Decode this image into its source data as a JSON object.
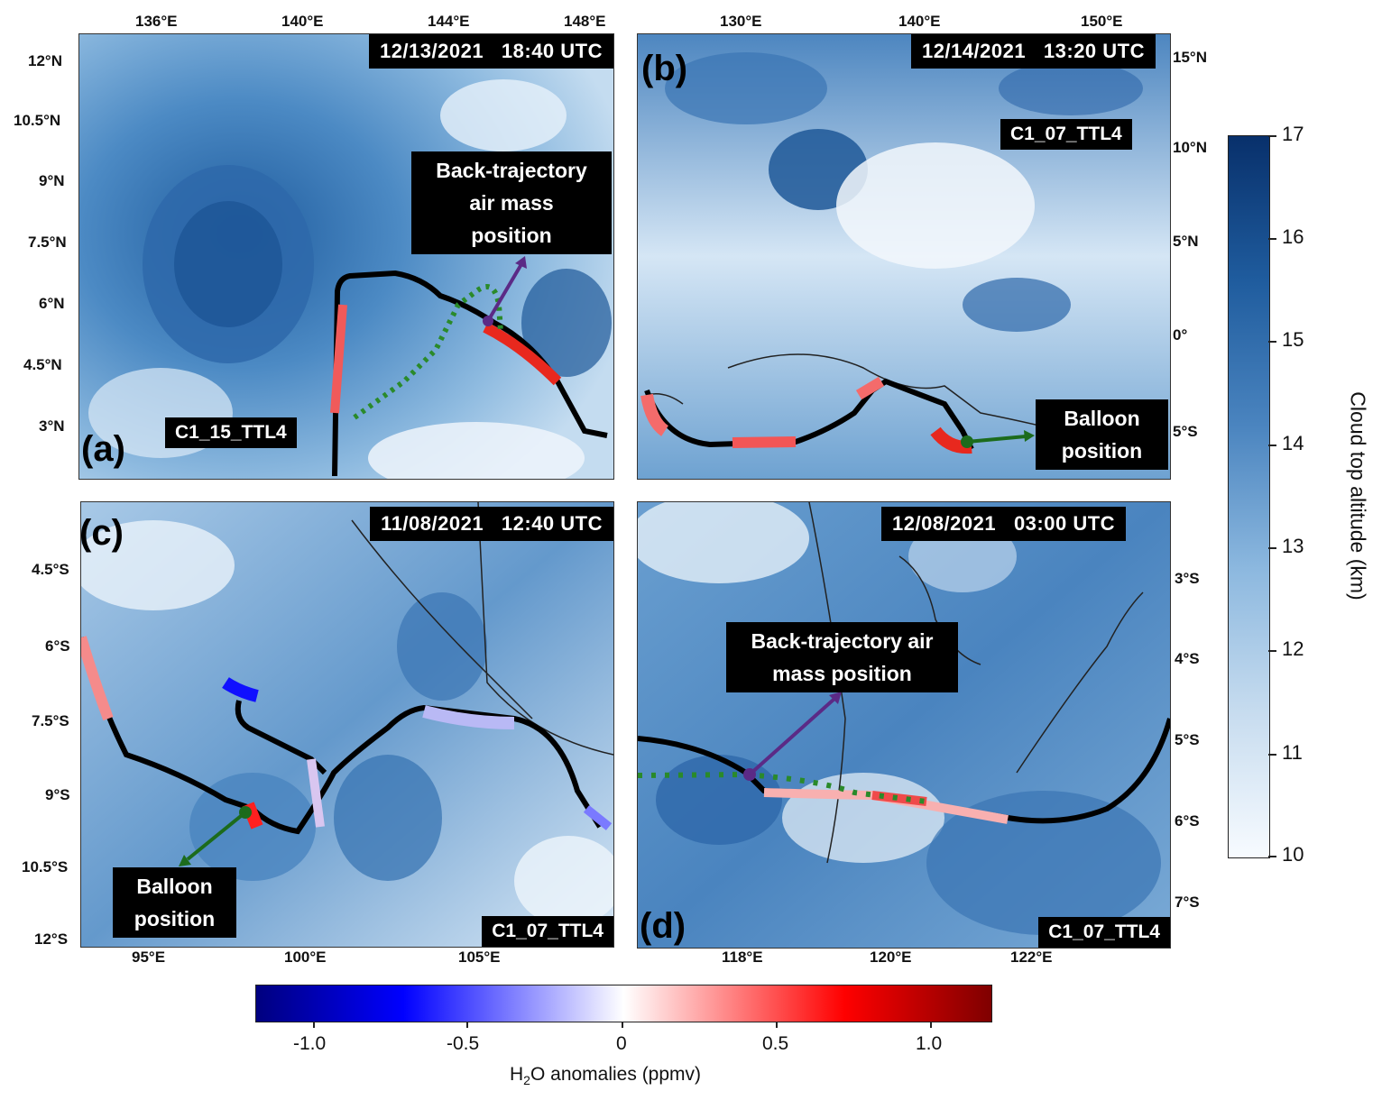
{
  "panels": {
    "a": {
      "letter": "(a)",
      "timestamp": "12/13/2021   18:40 UTC",
      "flight_id": "C1_15_TTL4",
      "callout": [
        "Back-trajectory",
        "air mass",
        "position"
      ],
      "lon_ticks": [
        "136°E",
        "140°E",
        "144°E",
        "148°E"
      ],
      "lat_ticks": [
        "12°N",
        "10.5°N",
        "9°N",
        "7.5°N",
        "6°N",
        "4.5°N",
        "3°N"
      ]
    },
    "b": {
      "letter": "(b)",
      "timestamp": "12/14/2021   13:20 UTC",
      "flight_id": "C1_07_TTL4",
      "callout": [
        "Balloon",
        "position"
      ],
      "lon_ticks": [
        "130°E",
        "140°E",
        "150°E"
      ],
      "lat_ticks": [
        "15°N",
        "10°N",
        "5°N",
        "0°",
        "5°S"
      ]
    },
    "c": {
      "letter": "(c)",
      "timestamp": "11/08/2021   12:40 UTC",
      "flight_id": "C1_07_TTL4",
      "callout": [
        "Balloon",
        "position"
      ],
      "lon_ticks": [
        "95°E",
        "100°E",
        "105°E"
      ],
      "lat_ticks": [
        "4.5°S",
        "6°S",
        "7.5°S",
        "9°S",
        "10.5°S",
        "12°S"
      ]
    },
    "d": {
      "letter": "(d)",
      "timestamp": "12/08/2021   03:00 UTC",
      "flight_id": "C1_07_TTL4",
      "callout": [
        "Back-trajectory air",
        "mass position"
      ],
      "lon_ticks": [
        "118°E",
        "120°E",
        "122°E"
      ],
      "lat_ticks": [
        "3°S",
        "4°S",
        "5°S",
        "6°S",
        "7°S"
      ]
    }
  },
  "cloud_colorbar": {
    "label": "Cloud top altitude (km)",
    "min": 10,
    "max": 17,
    "ticks": [
      "17",
      "16",
      "15",
      "14",
      "13",
      "12",
      "11",
      "10"
    ],
    "colors": [
      "#08306b",
      "#f7fbff"
    ]
  },
  "h2o_colorbar": {
    "label_prefix": "H",
    "label_sub": "2",
    "label_suffix": "O anomalies (ppmv)",
    "min": -1.2,
    "max": 1.2,
    "ticks": [
      "-1.0",
      "-0.5",
      "0",
      "0.5",
      "1.0"
    ],
    "colors": [
      "#00007f",
      "#0000ff",
      "#ffffff",
      "#ff0000",
      "#7f0000"
    ]
  },
  "legend_colors": {
    "trajectory": "#000000",
    "back_trajectory_marker": "#2a8a2a",
    "air_mass_arrow": "#5b2a86",
    "balloon_arrow": "#1c6b1c"
  }
}
